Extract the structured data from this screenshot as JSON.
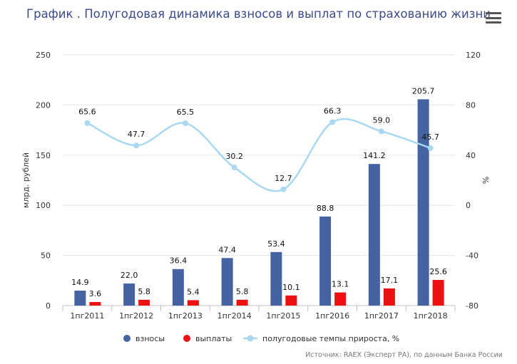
{
  "title": "График . Полугодовая динамика взносов и выплат по страхованию жизни",
  "menu_icon": "hamburger-menu-icon",
  "source": "Источник: RAEX (Эксперт РА), по данным Банка России",
  "colors": {
    "vznosy": "#4463a0",
    "vyplaty": "#ee1111",
    "growth": "#a9d8f2",
    "title": "#3b4a8a"
  },
  "chart_data": {
    "type": "bar",
    "title": "График . Полугодовая динамика взносов и выплат по страхованию жизни",
    "categories": [
      "1пг2011",
      "1пг2012",
      "1пг2013",
      "1пг2014",
      "1пг2015",
      "1пг2016",
      "1пг2017",
      "1пг2018"
    ],
    "ylabel": "млрд. рублей",
    "ylim": [
      0,
      250
    ],
    "yticks": [
      "0",
      "50",
      "100",
      "150",
      "200",
      "250"
    ],
    "y2label": "%",
    "y2lim": [
      -80,
      120
    ],
    "y2ticks": [
      "-80",
      "-40",
      "0",
      "40",
      "80",
      "120"
    ],
    "grid": true,
    "legend_position": "bottom",
    "series": [
      {
        "name": "взносы",
        "type": "bar",
        "axis": "left",
        "values": [
          14.9,
          22.0,
          36.4,
          47.4,
          53.4,
          88.8,
          141.2,
          205.7
        ],
        "labels": [
          "14.9",
          "22.0",
          "36.4",
          "47.4",
          "53.4",
          "88.8",
          "141.2",
          "205.7"
        ]
      },
      {
        "name": "выплаты",
        "type": "bar",
        "axis": "left",
        "values": [
          3.6,
          5.8,
          5.4,
          5.8,
          10.1,
          13.1,
          17.1,
          25.6
        ],
        "labels": [
          "3.6",
          "5.8",
          "5.4",
          "5.8",
          "10.1",
          "13.1",
          "17.1",
          "25.6"
        ]
      },
      {
        "name": "полугодовые темпы прироста, %",
        "type": "line",
        "axis": "right",
        "values": [
          65.6,
          47.7,
          65.5,
          30.2,
          12.7,
          66.3,
          59.0,
          45.7
        ],
        "labels": [
          "65.6",
          "47.7",
          "65.5",
          "30.2",
          "12.7",
          "66.3",
          "59.0",
          "45.7"
        ]
      }
    ]
  }
}
